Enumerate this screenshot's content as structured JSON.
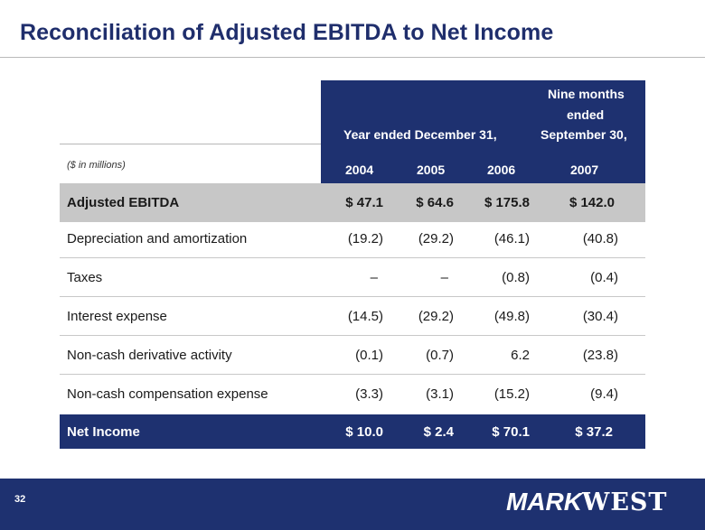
{
  "slide": {
    "title": "Reconciliation of Adjusted EBITDA to Net Income",
    "page_number": "32",
    "logo_text": "MARKWEST",
    "logo_parts": [
      "MARK",
      "WEST"
    ]
  },
  "table": {
    "header": {
      "group_label": "Year ended December 31,",
      "nine_months_lines": [
        "Nine months",
        "ended",
        "September 30,"
      ],
      "units": "($ in millions)",
      "years": [
        "2004",
        "2005",
        "2006",
        "2007"
      ]
    },
    "rows": [
      {
        "label": "Adjusted EBITDA",
        "values": [
          "$  47.1",
          "$  64.6",
          "$ 175.8",
          "$ 142.0"
        ]
      },
      {
        "label": "Depreciation and amortization",
        "values": [
          "(19.2)",
          "(29.2)",
          "(46.1)",
          "(40.8)"
        ]
      },
      {
        "label": "Taxes",
        "values": [
          "–",
          "–",
          "(0.8)",
          "(0.4)"
        ]
      },
      {
        "label": "Interest expense",
        "values": [
          "(14.5)",
          "(29.2)",
          "(49.8)",
          "(30.4)"
        ]
      },
      {
        "label": "Non-cash derivative activity",
        "values": [
          "(0.1)",
          "(0.7)",
          "6.2",
          "(23.8)"
        ]
      },
      {
        "label": "Non-cash compensation expense",
        "values": [
          "(3.3)",
          "(3.1)",
          "(15.2)",
          "(9.4)"
        ]
      },
      {
        "label": "Net Income",
        "values": [
          "$  10.0",
          "$  2.4",
          "$  70.1",
          "$  37.2"
        ]
      }
    ]
  },
  "colors": {
    "navy": "#1e3170",
    "title_blue": "#1f2e6c",
    "highlight_gray": "#c7c7c7"
  }
}
